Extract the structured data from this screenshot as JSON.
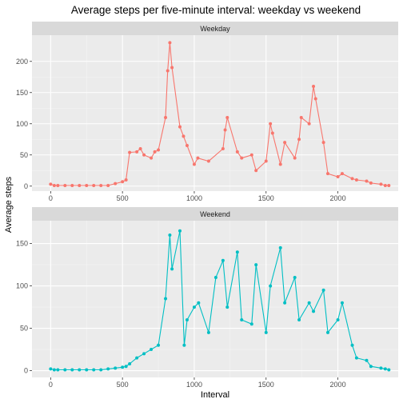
{
  "chart_data": {
    "type": "line",
    "title": "Average steps per five-minute interval: weekday vs weekend",
    "xlabel": "Interval",
    "ylabel": "Average steps",
    "xlim": [
      -130,
      2420
    ],
    "x_ticks": [
      0,
      500,
      1000,
      1500,
      2000
    ],
    "grid": true,
    "legend": "none",
    "colors": {
      "Weekday": "#F8766D",
      "Weekend": "#00BFC4"
    },
    "panels": [
      {
        "name": "Weekday",
        "ylim": [
          -8,
          242
        ],
        "y_ticks": [
          0,
          50,
          100,
          150,
          200
        ],
        "x": [
          0,
          25,
          50,
          100,
          150,
          200,
          250,
          300,
          350,
          400,
          450,
          500,
          525,
          550,
          600,
          625,
          650,
          700,
          725,
          750,
          800,
          815,
          830,
          845,
          900,
          925,
          950,
          1000,
          1025,
          1100,
          1200,
          1215,
          1230,
          1300,
          1330,
          1400,
          1430,
          1500,
          1530,
          1545,
          1600,
          1630,
          1700,
          1730,
          1745,
          1800,
          1830,
          1845,
          1900,
          1930,
          2000,
          2030,
          2100,
          2130,
          2200,
          2230,
          2300,
          2330,
          2355
        ],
        "y": [
          3,
          1,
          1,
          1,
          1,
          1,
          1,
          1,
          1,
          1,
          4,
          7,
          10,
          54,
          55,
          60,
          50,
          45,
          55,
          58,
          110,
          185,
          230,
          190,
          95,
          80,
          65,
          35,
          45,
          40,
          60,
          90,
          110,
          55,
          45,
          50,
          25,
          40,
          100,
          85,
          35,
          70,
          45,
          75,
          110,
          100,
          160,
          140,
          70,
          20,
          15,
          20,
          12,
          10,
          8,
          5,
          3,
          1,
          1
        ]
      },
      {
        "name": "Weekend",
        "ylim": [
          -8,
          177
        ],
        "y_ticks": [
          0,
          50,
          100,
          150
        ],
        "x": [
          0,
          25,
          50,
          100,
          150,
          200,
          250,
          300,
          350,
          400,
          450,
          500,
          525,
          550,
          600,
          650,
          700,
          750,
          800,
          830,
          845,
          900,
          930,
          950,
          1000,
          1030,
          1100,
          1150,
          1200,
          1230,
          1300,
          1330,
          1400,
          1430,
          1500,
          1530,
          1600,
          1630,
          1700,
          1730,
          1800,
          1830,
          1900,
          1930,
          2000,
          2030,
          2100,
          2130,
          2200,
          2230,
          2300,
          2330,
          2355
        ],
        "y": [
          2,
          1,
          1,
          1,
          1,
          1,
          1,
          1,
          1,
          2,
          3,
          4,
          5,
          8,
          15,
          20,
          25,
          30,
          85,
          160,
          120,
          165,
          30,
          60,
          75,
          80,
          45,
          110,
          130,
          75,
          140,
          60,
          55,
          125,
          45,
          100,
          145,
          80,
          110,
          60,
          80,
          70,
          95,
          45,
          60,
          80,
          30,
          15,
          12,
          5,
          3,
          2,
          1
        ]
      }
    ]
  }
}
